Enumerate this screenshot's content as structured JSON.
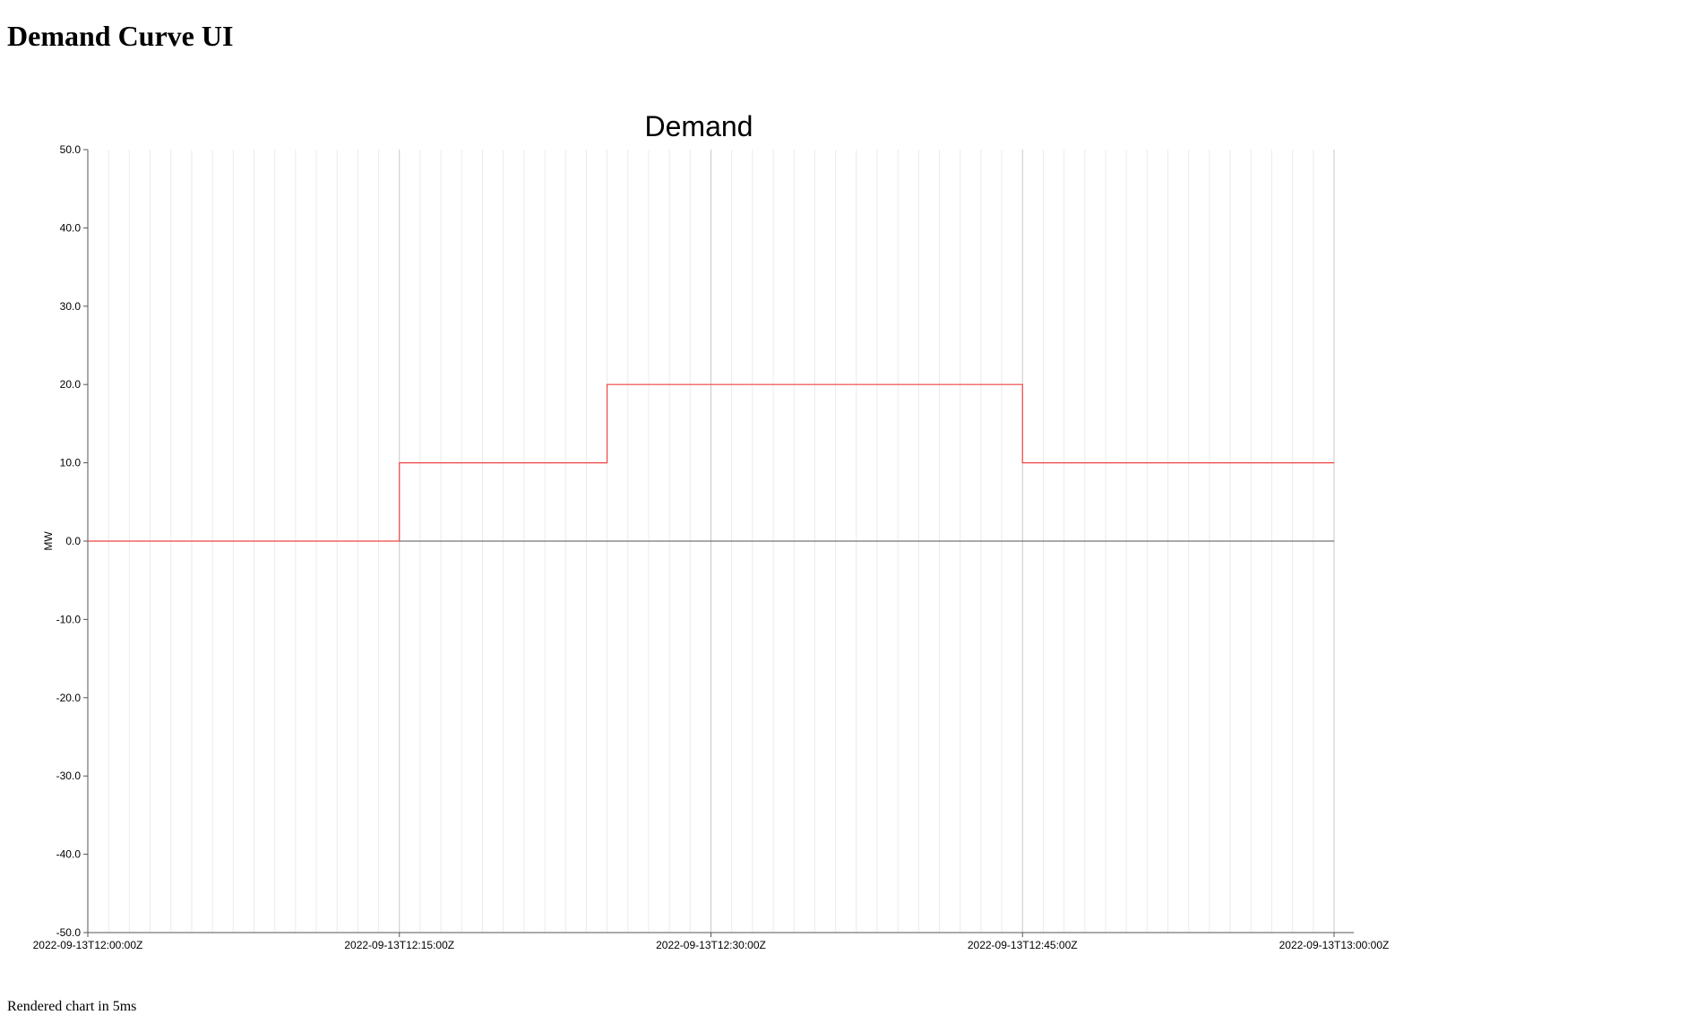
{
  "page": {
    "heading": "Demand Curve UI",
    "render_note": "Rendered chart in 5ms"
  },
  "chart_data": {
    "type": "line",
    "step": "after",
    "title": "Demand",
    "xlabel": "",
    "ylabel": "MW",
    "x_tick_labels": [
      "2022-09-13T12:00:00Z",
      "2022-09-13T12:15:00Z",
      "2022-09-13T12:30:00Z",
      "2022-09-13T12:45:00Z",
      "2022-09-13T13:00:00Z"
    ],
    "y_tick_labels": [
      "50.0",
      "40.0",
      "30.0",
      "20.0",
      "10.0",
      "0.0",
      "-10.0",
      "-20.0",
      "-30.0",
      "-40.0",
      "-50.0"
    ],
    "xlim": [
      "2022-09-13T12:00:00Z",
      "2022-09-13T13:00:00Z"
    ],
    "ylim": [
      -50,
      50
    ],
    "minor_grid_minutes": 1,
    "major_grid_minutes": 15,
    "series": [
      {
        "color": "#ef4444",
        "points": [
          {
            "x": "2022-09-13T12:00:00Z",
            "y": 0
          },
          {
            "x": "2022-09-13T12:15:00Z",
            "y": 10
          },
          {
            "x": "2022-09-13T12:25:00Z",
            "y": 20
          },
          {
            "x": "2022-09-13T12:45:00Z",
            "y": 10
          },
          {
            "x": "2022-09-13T13:00:00Z",
            "y": 10
          }
        ]
      }
    ]
  }
}
